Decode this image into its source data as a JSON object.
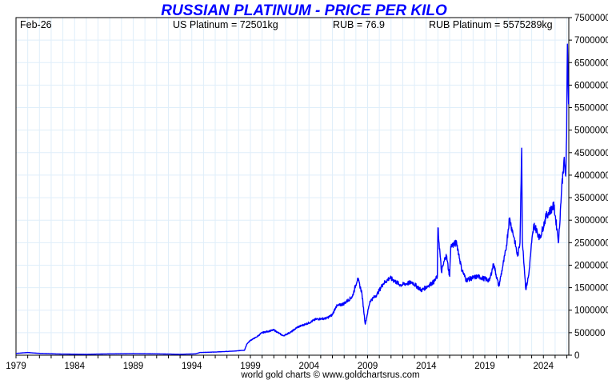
{
  "chart_data": {
    "type": "line",
    "title": "RUSSIAN PLATINUM - PRICE PER KILO",
    "header": {
      "date": "Feb-26",
      "us_platinum": "US Platinum = 72501kg",
      "rub": "RUB = 76.9",
      "rub_platinum": "RUB Platinum = 5575289kg"
    },
    "footer": "world gold charts © www.goldchartsrus.com",
    "xlabel": "",
    "ylabel": "",
    "xlim": [
      1979,
      2026.2
    ],
    "ylim": [
      0,
      7500000
    ],
    "x_tick_labels": [
      "1979",
      "1984",
      "1989",
      "1994",
      "1999",
      "2004",
      "2009",
      "2014",
      "2019",
      "2024"
    ],
    "y_tick_labels": [
      "0",
      "500000",
      "1000000",
      "1500000",
      "2000000",
      "2500000",
      "3000000",
      "3500000",
      "4000000",
      "4500000",
      "5000000",
      "5500000",
      "6000000",
      "6500000",
      "7000000",
      "7500000"
    ],
    "grid": true,
    "y_axis_side": "right",
    "line_color": "#0000ff",
    "series": [
      {
        "name": "RUB Platinum per kilo",
        "x": [
          1979,
          1980,
          1981,
          1983,
          1985,
          1987,
          1989,
          1991,
          1993,
          1994.3,
          1994.7,
          1996,
          1997.5,
          1998.5,
          1998.7,
          1999,
          1999.5,
          2000,
          2001,
          2001.8,
          2002.5,
          2003,
          2004,
          2004.6,
          2005.5,
          2006,
          2006.3,
          2007,
          2007.7,
          2008.15,
          2008.5,
          2008.8,
          2009.2,
          2009.8,
          2010.3,
          2010.9,
          2011.8,
          2012.8,
          2013.6,
          2014.7,
          2014.95,
          2015.0,
          2015.3,
          2015.7,
          2016.0,
          2016.1,
          2016.6,
          2017.0,
          2017.4,
          2018.4,
          2019.4,
          2019.75,
          2020.2,
          2020.5,
          2020.8,
          2021.1,
          2021.5,
          2021.8,
          2022.0,
          2022.15,
          2022.2,
          2022.5,
          2022.75,
          2023.0,
          2023.2,
          2023.7,
          2024.25,
          2024.9,
          2025.3,
          2025.55,
          2025.75,
          2025.9,
          2025.98,
          2026.05,
          2026.15
        ],
        "y": [
          40000,
          60000,
          40000,
          25000,
          20000,
          30000,
          35000,
          30000,
          20000,
          30000,
          60000,
          70000,
          90000,
          110000,
          250000,
          330000,
          400000,
          500000,
          560000,
          430000,
          520000,
          620000,
          720000,
          800000,
          820000,
          900000,
          1080000,
          1150000,
          1300000,
          1710000,
          1400000,
          690000,
          1200000,
          1350000,
          1580000,
          1720000,
          1560000,
          1620000,
          1440000,
          1640000,
          1750000,
          2830000,
          1850000,
          2240000,
          1750000,
          2420000,
          2500000,
          1940000,
          1670000,
          1750000,
          1660000,
          2030000,
          1530000,
          1930000,
          2330000,
          3040000,
          2610000,
          2200000,
          2500000,
          4600000,
          2600000,
          1460000,
          1780000,
          2500000,
          2900000,
          2600000,
          3100000,
          3320000,
          2520000,
          3680000,
          4330000,
          3980000,
          4870000,
          6910000,
          5575289
        ]
      }
    ]
  }
}
